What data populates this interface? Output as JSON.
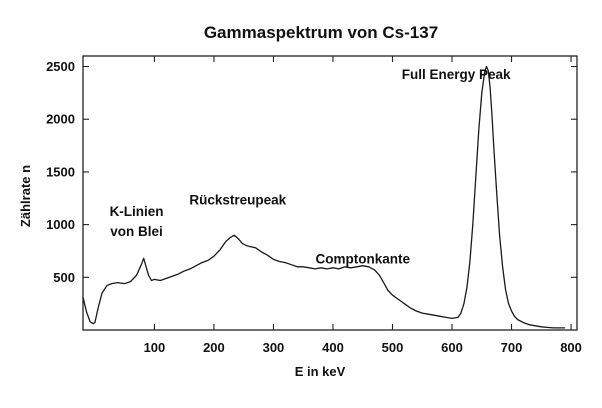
{
  "chart_data": {
    "type": "line",
    "title": "Gammaspektrum von Cs-137",
    "xlabel": "E in keV",
    "ylabel": "Zählrate n",
    "xlim": [
      -20,
      810
    ],
    "ylim": [
      0,
      2600
    ],
    "x_ticks": [
      100,
      200,
      300,
      400,
      500,
      600,
      700,
      800
    ],
    "y_ticks": [
      500,
      1000,
      1500,
      2000,
      2500
    ],
    "grid": false,
    "annotations": [
      {
        "lines": [
          "K-Linien",
          "von Blei"
        ],
        "x": 70,
        "y": 1080
      },
      {
        "lines": [
          "Rückstreupeak"
        ],
        "x": 240,
        "y": 1190
      },
      {
        "lines": [
          "Comptonkante"
        ],
        "x": 450,
        "y": 630
      },
      {
        "lines": [
          "Full Energy Peak"
        ],
        "x": 607,
        "y": 2380
      }
    ],
    "series": [
      {
        "color": "#1a1a1a",
        "x": [
          -20,
          -14,
          -8,
          -3,
          0,
          5,
          12,
          20,
          28,
          38,
          50,
          60,
          70,
          78,
          82,
          86,
          90,
          95,
          100,
          110,
          120,
          130,
          140,
          150,
          160,
          170,
          180,
          190,
          200,
          210,
          220,
          228,
          234,
          238,
          242,
          248,
          255,
          262,
          270,
          280,
          290,
          300,
          310,
          320,
          330,
          340,
          350,
          360,
          370,
          380,
          390,
          400,
          410,
          420,
          430,
          440,
          450,
          460,
          470,
          478,
          485,
          492,
          500,
          510,
          520,
          530,
          540,
          550,
          560,
          570,
          580,
          590,
          600,
          610,
          615,
          620,
          625,
          630,
          635,
          640,
          645,
          650,
          655,
          658,
          661,
          664,
          667,
          670,
          675,
          680,
          685,
          690,
          695,
          700,
          705,
          710,
          720,
          730,
          740,
          750,
          760,
          770,
          780,
          790
        ],
        "y": [
          310,
          170,
          80,
          60,
          70,
          200,
          350,
          420,
          440,
          450,
          440,
          460,
          520,
          620,
          680,
          600,
          520,
          470,
          480,
          470,
          490,
          510,
          530,
          560,
          580,
          610,
          640,
          660,
          700,
          760,
          840,
          880,
          900,
          880,
          860,
          820,
          800,
          790,
          780,
          740,
          710,
          670,
          650,
          640,
          620,
          600,
          600,
          590,
          580,
          590,
          580,
          590,
          580,
          600,
          590,
          600,
          610,
          600,
          570,
          520,
          450,
          380,
          330,
          290,
          250,
          210,
          180,
          160,
          150,
          140,
          130,
          120,
          110,
          120,
          160,
          250,
          400,
          650,
          1000,
          1450,
          1900,
          2250,
          2450,
          2500,
          2460,
          2300,
          2050,
          1750,
          1300,
          900,
          600,
          380,
          250,
          180,
          130,
          100,
          70,
          50,
          40,
          30,
          25,
          20,
          20,
          20
        ]
      }
    ]
  }
}
